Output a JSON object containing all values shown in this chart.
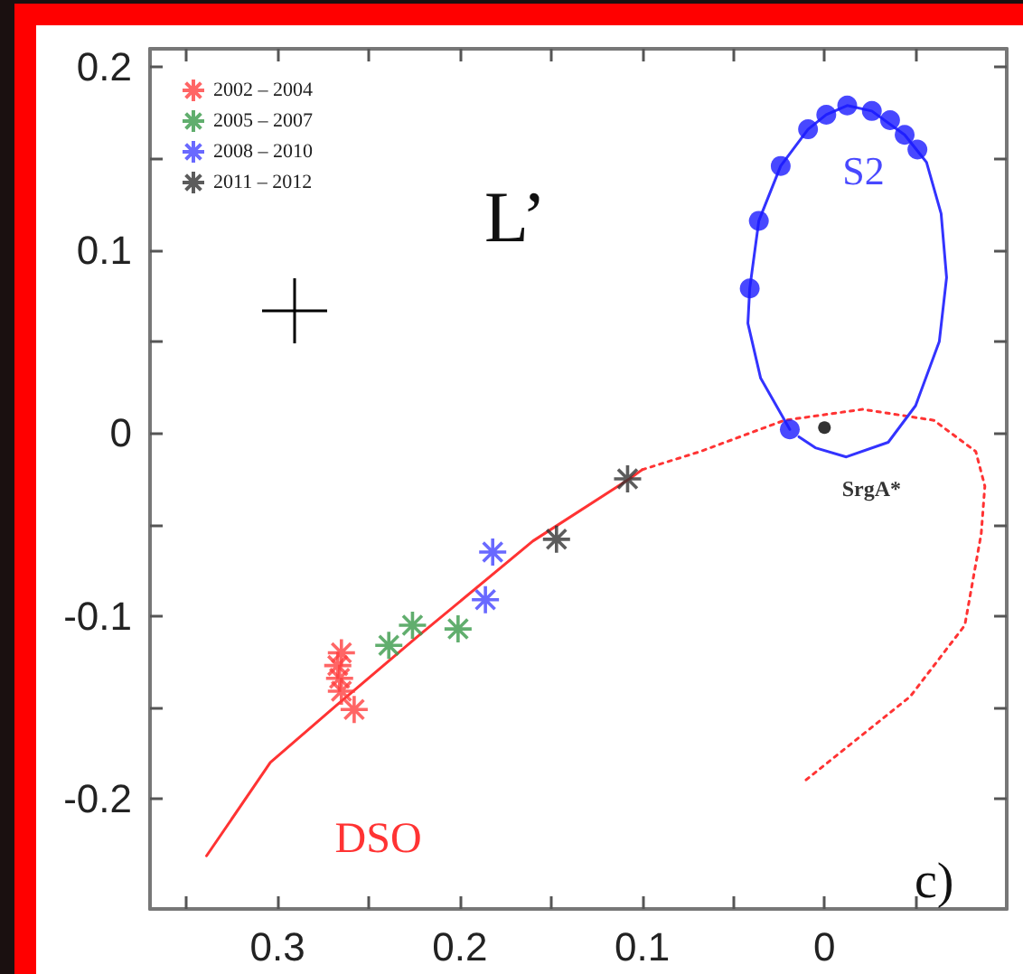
{
  "chart_data": {
    "type": "scatter",
    "annotations": [
      "L’",
      "c)"
    ],
    "xlim": [
      0.37,
      -0.1
    ],
    "ylim": [
      -0.26,
      0.21
    ],
    "xticks": [
      {
        "value": 0.35,
        "label": null
      },
      0.3,
      {
        "value": 0.25,
        "label": null
      },
      0.2,
      {
        "value": 0.15,
        "label": null
      },
      0.1,
      {
        "value": 0.05,
        "label": null
      },
      0,
      {
        "value": -0.05,
        "label": null
      }
    ],
    "yticks": [
      -0.2,
      {
        "value": -0.15,
        "label": null
      },
      -0.1,
      {
        "value": -0.05,
        "label": null
      },
      0,
      {
        "value": 0.05,
        "label": null
      },
      0.1,
      {
        "value": 0.15,
        "label": null
      },
      0.2
    ],
    "grid": false,
    "legend": "top left",
    "series": [
      {
        "type": "line",
        "name": "DSO",
        "color": "#ff3333",
        "line_style": "solid",
        "marker": "none",
        "x": [
          0.339,
          0.304,
          0.268,
          0.223,
          0.16,
          0.107,
          0.1
        ],
        "values": [
          -0.231,
          -0.18,
          -0.149,
          -0.111,
          -0.059,
          -0.025,
          -0.02
        ]
      },
      {
        "type": "line",
        "color": "#ff3333",
        "line_style": "dotted",
        "marker": "none",
        "x": [
          0.1,
          0.068,
          0.022,
          -0.021,
          -0.06,
          -0.083,
          -0.088,
          -0.086,
          -0.077,
          -0.047,
          0.012
        ],
        "values": [
          -0.02,
          -0.01,
          0.007,
          0.013,
          0.007,
          -0.01,
          -0.029,
          -0.055,
          -0.105,
          -0.144,
          -0.191
        ]
      },
      {
        "type": "line",
        "color": "#3333ff",
        "line_style": "solid",
        "marker": "none",
        "x": [
          0.019,
          0.035,
          0.042,
          0.041,
          0.036,
          0.024,
          0.009,
          -0.001,
          -0.0125,
          -0.026,
          -0.044,
          -0.056,
          -0.064,
          -0.067,
          -0.063,
          -0.05,
          -0.035,
          -0.012,
          0.005,
          0.014
        ],
        "values": [
          0.002,
          0.03,
          0.06,
          0.079,
          0.116,
          0.146,
          0.166,
          0.174,
          0.179,
          0.176,
          0.163,
          0.148,
          0.12,
          0.085,
          0.05,
          0.015,
          -0.005,
          -0.013,
          -0.008,
          -0.002
        ]
      },
      {
        "type": "scatter",
        "name": "S2",
        "color": "#1a1aff",
        "marker": "circle",
        "x": [
          0.041,
          0.036,
          0.024,
          0.009,
          -0.001,
          -0.0125,
          -0.026,
          -0.036,
          -0.044,
          -0.051,
          0.019
        ],
        "values": [
          0.079,
          0.116,
          0.146,
          0.166,
          0.174,
          0.179,
          0.176,
          0.171,
          0.163,
          0.155,
          0.002
        ]
      },
      {
        "type": "scatter",
        "name": "SrgA*",
        "color": "#000000",
        "marker": "circle",
        "x": [
          0
        ],
        "values": [
          0.003
        ]
      },
      {
        "type": "scatter",
        "name": "2002 – 2004",
        "color": "#ff4040",
        "marker": "cross",
        "x": [
          0.265,
          0.267,
          0.266,
          0.265,
          0.258
        ],
        "values": [
          -0.12,
          -0.127,
          -0.134,
          -0.141,
          -0.151
        ]
      },
      {
        "type": "scatter",
        "name": "2005 – 2007",
        "color": "#3a9a4a",
        "marker": "cross",
        "x": [
          0.239,
          0.226,
          0.201
        ],
        "values": [
          -0.116,
          -0.105,
          -0.107
        ]
      },
      {
        "type": "scatter",
        "name": "2008 – 2010",
        "color": "#4444ff",
        "marker": "cross",
        "x": [
          0.182,
          0.186
        ],
        "values": [
          -0.065,
          -0.091
        ]
      },
      {
        "type": "scatter",
        "name": "2011 – 2012",
        "color": "#333333",
        "marker": "cross",
        "x": [
          0.147,
          0.108
        ],
        "values": [
          -0.058,
          -0.025
        ]
      }
    ]
  }
}
